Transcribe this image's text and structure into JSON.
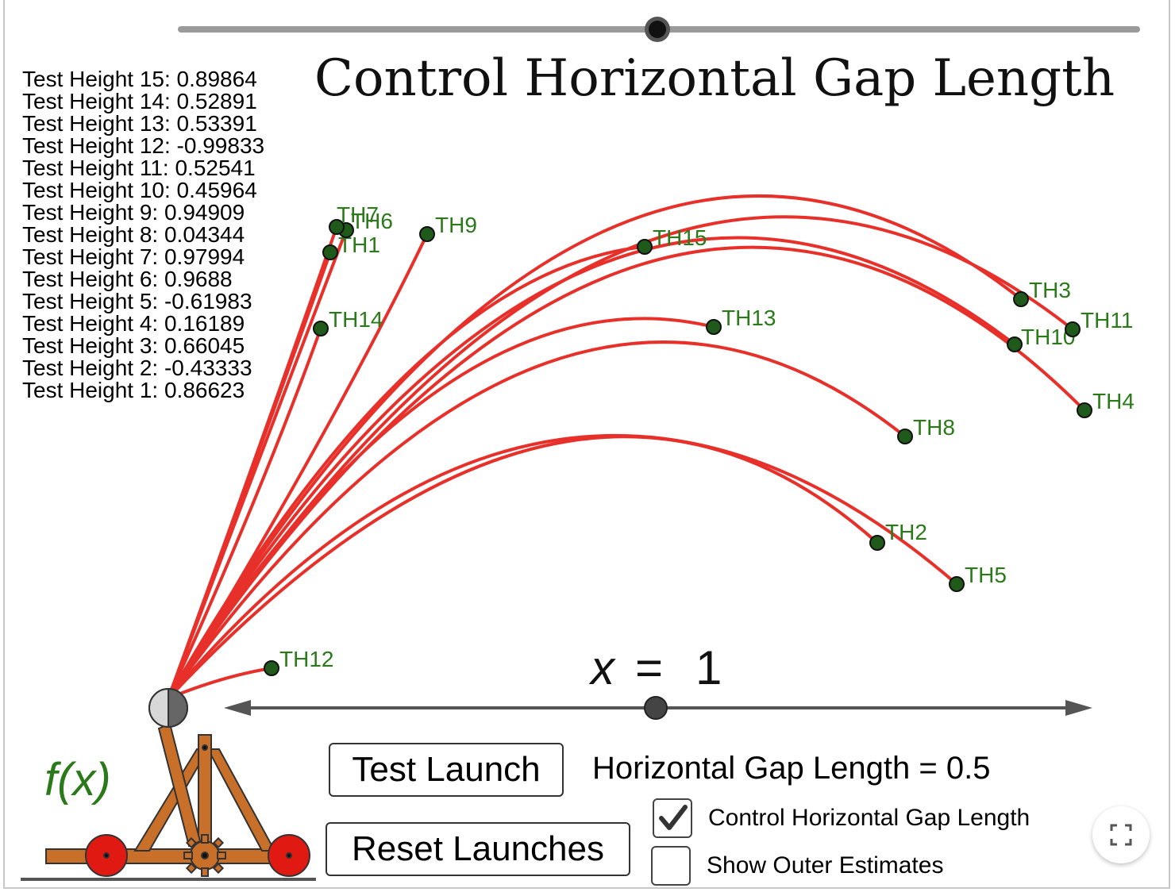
{
  "title": "Control Horizontal Gap Length",
  "test_heights": [
    "Test Height 15: 0.89864",
    "Test Height 14: 0.52891",
    "Test Height 13: 0.53391",
    "Test Height 12: -0.99833",
    "Test Height 11: 0.52541",
    "Test Height 10: 0.45964",
    "Test Height 9: 0.94909",
    "Test Height 8: 0.04344",
    "Test Height 7: 0.97994",
    "Test Height 6: 0.9688",
    "Test Height 5: -0.61983",
    "Test Height 4: 0.16189",
    "Test Height 3: 0.66045",
    "Test Height 2: -0.43333",
    "Test Height 1: 0.86623"
  ],
  "trajectory_labels": [
    "TH1",
    "TH2",
    "TH3",
    "TH4",
    "TH5",
    "TH6",
    "TH7",
    "TH8",
    "TH9",
    "TH10",
    "TH11",
    "TH12",
    "TH13",
    "TH14",
    "TH15"
  ],
  "x_label_var": "x",
  "x_label_eq": "=",
  "x_label_value": "1",
  "fx_label": "f(x)",
  "buttons": {
    "test_launch": "Test Launch",
    "reset_launches": "Reset Launches"
  },
  "gap_length_text": "Horizontal Gap Length = 0.5",
  "checkboxes": {
    "control_gap": {
      "label": "Control Horizontal Gap Length",
      "checked": true
    },
    "outer_estimates": {
      "label": "Show Outer Estimates",
      "checked": false
    }
  },
  "colors": {
    "trajectory": "#e8302a",
    "point": "#1f5a1a",
    "label": "#2a7a1a",
    "catapult_wood": "#c8702a",
    "wheel": "#e01a12"
  },
  "icons": {
    "fullscreen": "fullscreen-icon",
    "checkmark": "checkmark-icon"
  }
}
